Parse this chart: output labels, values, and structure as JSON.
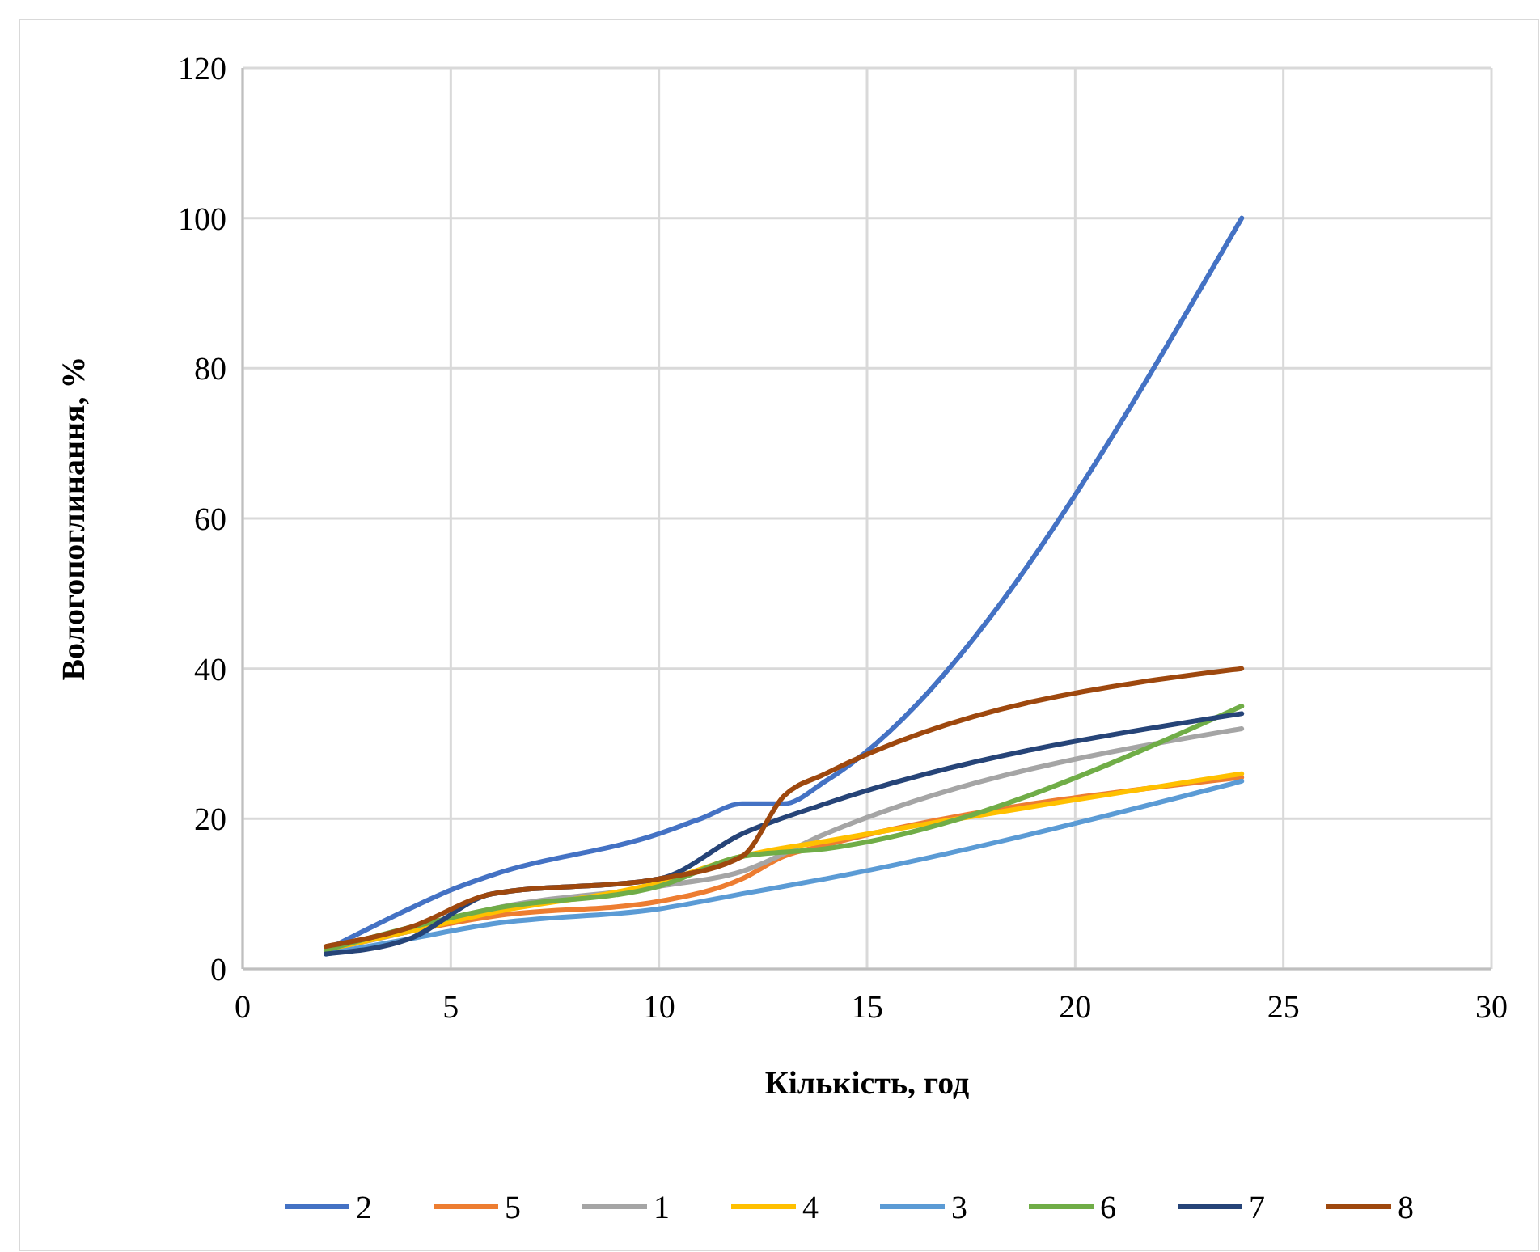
{
  "chart_data": {
    "type": "line",
    "xlabel": "Кількість, год",
    "ylabel": "Вологопоглинання, %",
    "xlim": [
      0,
      30
    ],
    "xticks": [
      0,
      5,
      10,
      15,
      20,
      25,
      30
    ],
    "ylim": [
      0,
      120
    ],
    "yticks": [
      0,
      20,
      40,
      60,
      80,
      100,
      120
    ],
    "grid": true,
    "legend": "bottom",
    "marker": "none",
    "line_style": "solid",
    "series": [
      {
        "name": "2",
        "color": "#4472c4",
        "x": [
          2,
          4,
          5,
          6,
          10,
          11,
          12,
          13,
          14,
          24
        ],
        "values": [
          2.5,
          8,
          10.5,
          12.5,
          18,
          20,
          22,
          22,
          25,
          100
        ]
      },
      {
        "name": "5",
        "color": "#ed7d31",
        "x": [
          2,
          4,
          6,
          10,
          12,
          13,
          14,
          24
        ],
        "values": [
          2.5,
          5,
          7,
          9,
          12,
          15,
          16.5,
          25.5
        ]
      },
      {
        "name": "1",
        "color": "#a5a5a5",
        "x": [
          2,
          4,
          6,
          10,
          12,
          14,
          24
        ],
        "values": [
          2.5,
          5,
          8,
          11,
          13,
          18,
          32
        ]
      },
      {
        "name": "4",
        "color": "#ffc000",
        "x": [
          2,
          4,
          6,
          10,
          12,
          14,
          24
        ],
        "values": [
          2.5,
          5,
          7.5,
          11.5,
          15,
          17,
          26
        ]
      },
      {
        "name": "3",
        "color": "#5b9bd5",
        "x": [
          2,
          4,
          6,
          10,
          12,
          14,
          24
        ],
        "values": [
          2,
          4,
          6,
          8,
          10,
          12,
          25
        ]
      },
      {
        "name": "6",
        "color": "#70ad47",
        "x": [
          2,
          4,
          6,
          10,
          12,
          14,
          24
        ],
        "values": [
          2.5,
          5.5,
          8,
          11,
          15,
          16,
          35
        ]
      },
      {
        "name": "7",
        "color": "#264478",
        "x": [
          2,
          4,
          6,
          10,
          12,
          14,
          24
        ],
        "values": [
          2,
          4,
          10,
          12,
          18,
          22,
          34
        ]
      },
      {
        "name": "8",
        "color": "#9e480e",
        "x": [
          2,
          4,
          6,
          10,
          12,
          13,
          14,
          24
        ],
        "values": [
          3,
          5.5,
          10,
          12,
          15,
          23,
          26,
          40
        ]
      }
    ]
  }
}
